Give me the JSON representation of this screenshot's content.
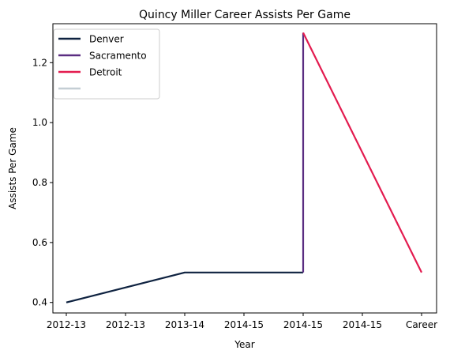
{
  "chart_data": {
    "type": "line",
    "title": "Quincy Miller Career Assists Per Game",
    "xlabel": "Year",
    "ylabel": "Assists Per Game",
    "x_ticks": [
      "2012-13",
      "2012-13",
      "2013-14",
      "2014-15",
      "2014-15",
      "2014-15",
      "Career"
    ],
    "y_ticks": [
      0.4,
      0.6,
      0.8,
      1.0,
      1.2
    ],
    "y_tick_labels": [
      "0.4",
      "0.6",
      "0.8",
      "1.0",
      "1.2"
    ],
    "ylim": [
      0.365,
      1.33
    ],
    "grid": false,
    "legend_location": "upper-left",
    "series": [
      {
        "name": "Denver",
        "color": "#0e2240",
        "points": [
          [
            0,
            0.4
          ],
          [
            2,
            0.5
          ],
          [
            4,
            0.5
          ]
        ]
      },
      {
        "name": "Sacramento",
        "color": "#5a2d81",
        "points": [
          [
            4,
            0.5
          ],
          [
            4,
            1.3
          ]
        ]
      },
      {
        "name": "Detroit",
        "color": "#e31b4f",
        "points": [
          [
            4,
            1.3
          ],
          [
            6,
            0.5
          ]
        ]
      },
      {
        "name": "",
        "color": "#c4ced4",
        "points": []
      }
    ]
  }
}
